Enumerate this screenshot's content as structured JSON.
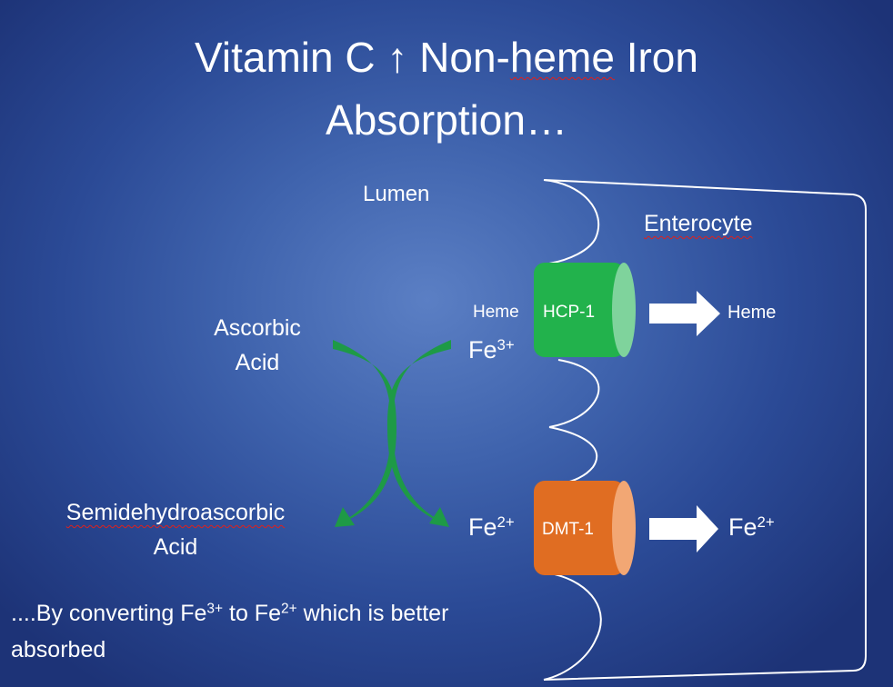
{
  "title": {
    "line1_pre": "Vitamin C ",
    "arrow": "↑",
    "line1_mid": " Non-",
    "line1_heme": "heme",
    "line1_post": " Iron",
    "line2": "Absorption…"
  },
  "labels": {
    "lumen": "Lumen",
    "enterocyte": "Enterocyte",
    "ascorbic_line1": "Ascorbic",
    "ascorbic_line2": "Acid",
    "semidehydro_line1": "Semidehydroascorbic",
    "semidehydro_line2": "Acid",
    "heme_in": "Heme",
    "heme_out": "Heme",
    "fe3_base": "Fe",
    "fe3_sup": "3+",
    "fe2_in_base": "Fe",
    "fe2_in_sup": "2+",
    "fe2_out_base": "Fe",
    "fe2_out_sup": "2+"
  },
  "transporters": {
    "hcp1": {
      "label": "HCP-1",
      "color": "#22b24c",
      "cap_color": "#7fd39c"
    },
    "dmt1": {
      "label": "DMT-1",
      "color": "#e06d22",
      "cap_color": "#f2a774"
    }
  },
  "arrows": {
    "curve_color": "#1e9a46",
    "block_color": "#ffffff"
  },
  "note": {
    "p1": "....By converting Fe",
    "sup1": "3+",
    "p2": " to Fe",
    "sup2": "2+",
    "p3": " which is better",
    "line2": "absorbed"
  }
}
